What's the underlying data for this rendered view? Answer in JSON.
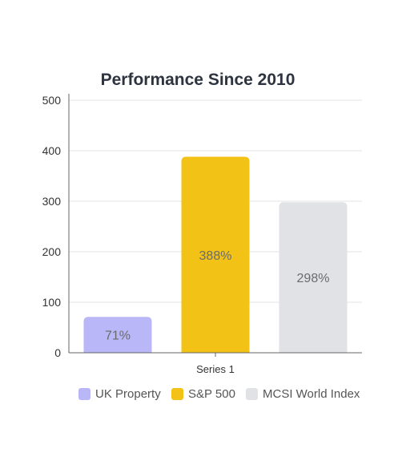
{
  "chart_data": {
    "type": "bar",
    "title": "Performance Since 2010",
    "categories": [
      "Series 1"
    ],
    "series": [
      {
        "name": "UK Property",
        "values": [
          71
        ],
        "label": "71%",
        "color": "#b9b7f7"
      },
      {
        "name": "S&P 500",
        "values": [
          388
        ],
        "label": "388%",
        "color": "#f2c316"
      },
      {
        "name": "MCSI World Index",
        "values": [
          298
        ],
        "label": "298%",
        "color": "#e1e2e6"
      }
    ],
    "ylim": [
      0,
      500
    ],
    "yticks": [
      "0",
      "100",
      "200",
      "300",
      "400",
      "500"
    ],
    "grid": true,
    "legend_position": "bottom"
  }
}
